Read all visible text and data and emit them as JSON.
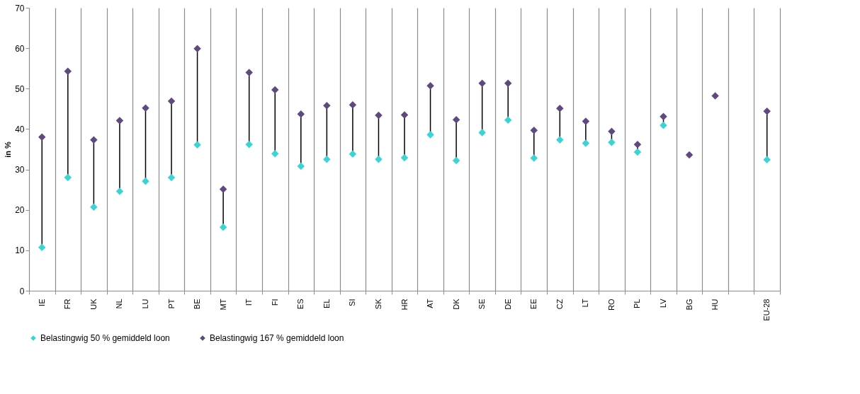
{
  "chart_data": {
    "type": "scatter",
    "ylabel": "in %",
    "categories": [
      "IE",
      "FR",
      "UK",
      "NL",
      "LU",
      "PT",
      "BE",
      "MT",
      "IT",
      "FI",
      "ES",
      "EL",
      "SI",
      "SK",
      "HR",
      "AT",
      "DK",
      "SE",
      "DE",
      "EE",
      "CZ",
      "LT",
      "RO",
      "PL",
      "LV",
      "BG",
      "HU",
      null,
      "EU-28"
    ],
    "series": [
      {
        "name": "Belastingwig 50 % gemiddeld loon",
        "color": "#3bd4d4",
        "values": [
          10.7,
          28.0,
          20.7,
          24.6,
          27.1,
          28.0,
          36.1,
          15.7,
          36.2,
          33.9,
          30.8,
          32.5,
          33.8,
          32.5,
          32.9,
          38.6,
          32.2,
          39.1,
          42.2,
          32.8,
          37.3,
          36.5,
          36.7,
          34.3,
          40.9,
          null,
          null,
          null,
          32.4
        ]
      },
      {
        "name": "Belastingwig 167 % gemiddeld loon",
        "color": "#5e4a7e",
        "values": [
          38.0,
          54.3,
          37.3,
          42.1,
          45.2,
          46.9,
          59.9,
          25.1,
          54.0,
          49.7,
          43.7,
          45.8,
          46.0,
          43.4,
          43.5,
          50.7,
          42.3,
          51.3,
          51.3,
          39.7,
          45.1,
          41.9,
          39.4,
          36.2,
          43.1,
          33.6,
          48.2,
          null,
          44.4
        ]
      }
    ],
    "ylim": [
      0,
      70
    ],
    "yticks": [
      0,
      10,
      20,
      30,
      40,
      50,
      60,
      70
    ],
    "grid": "x",
    "legend": "bottom",
    "marker": "diamond"
  }
}
